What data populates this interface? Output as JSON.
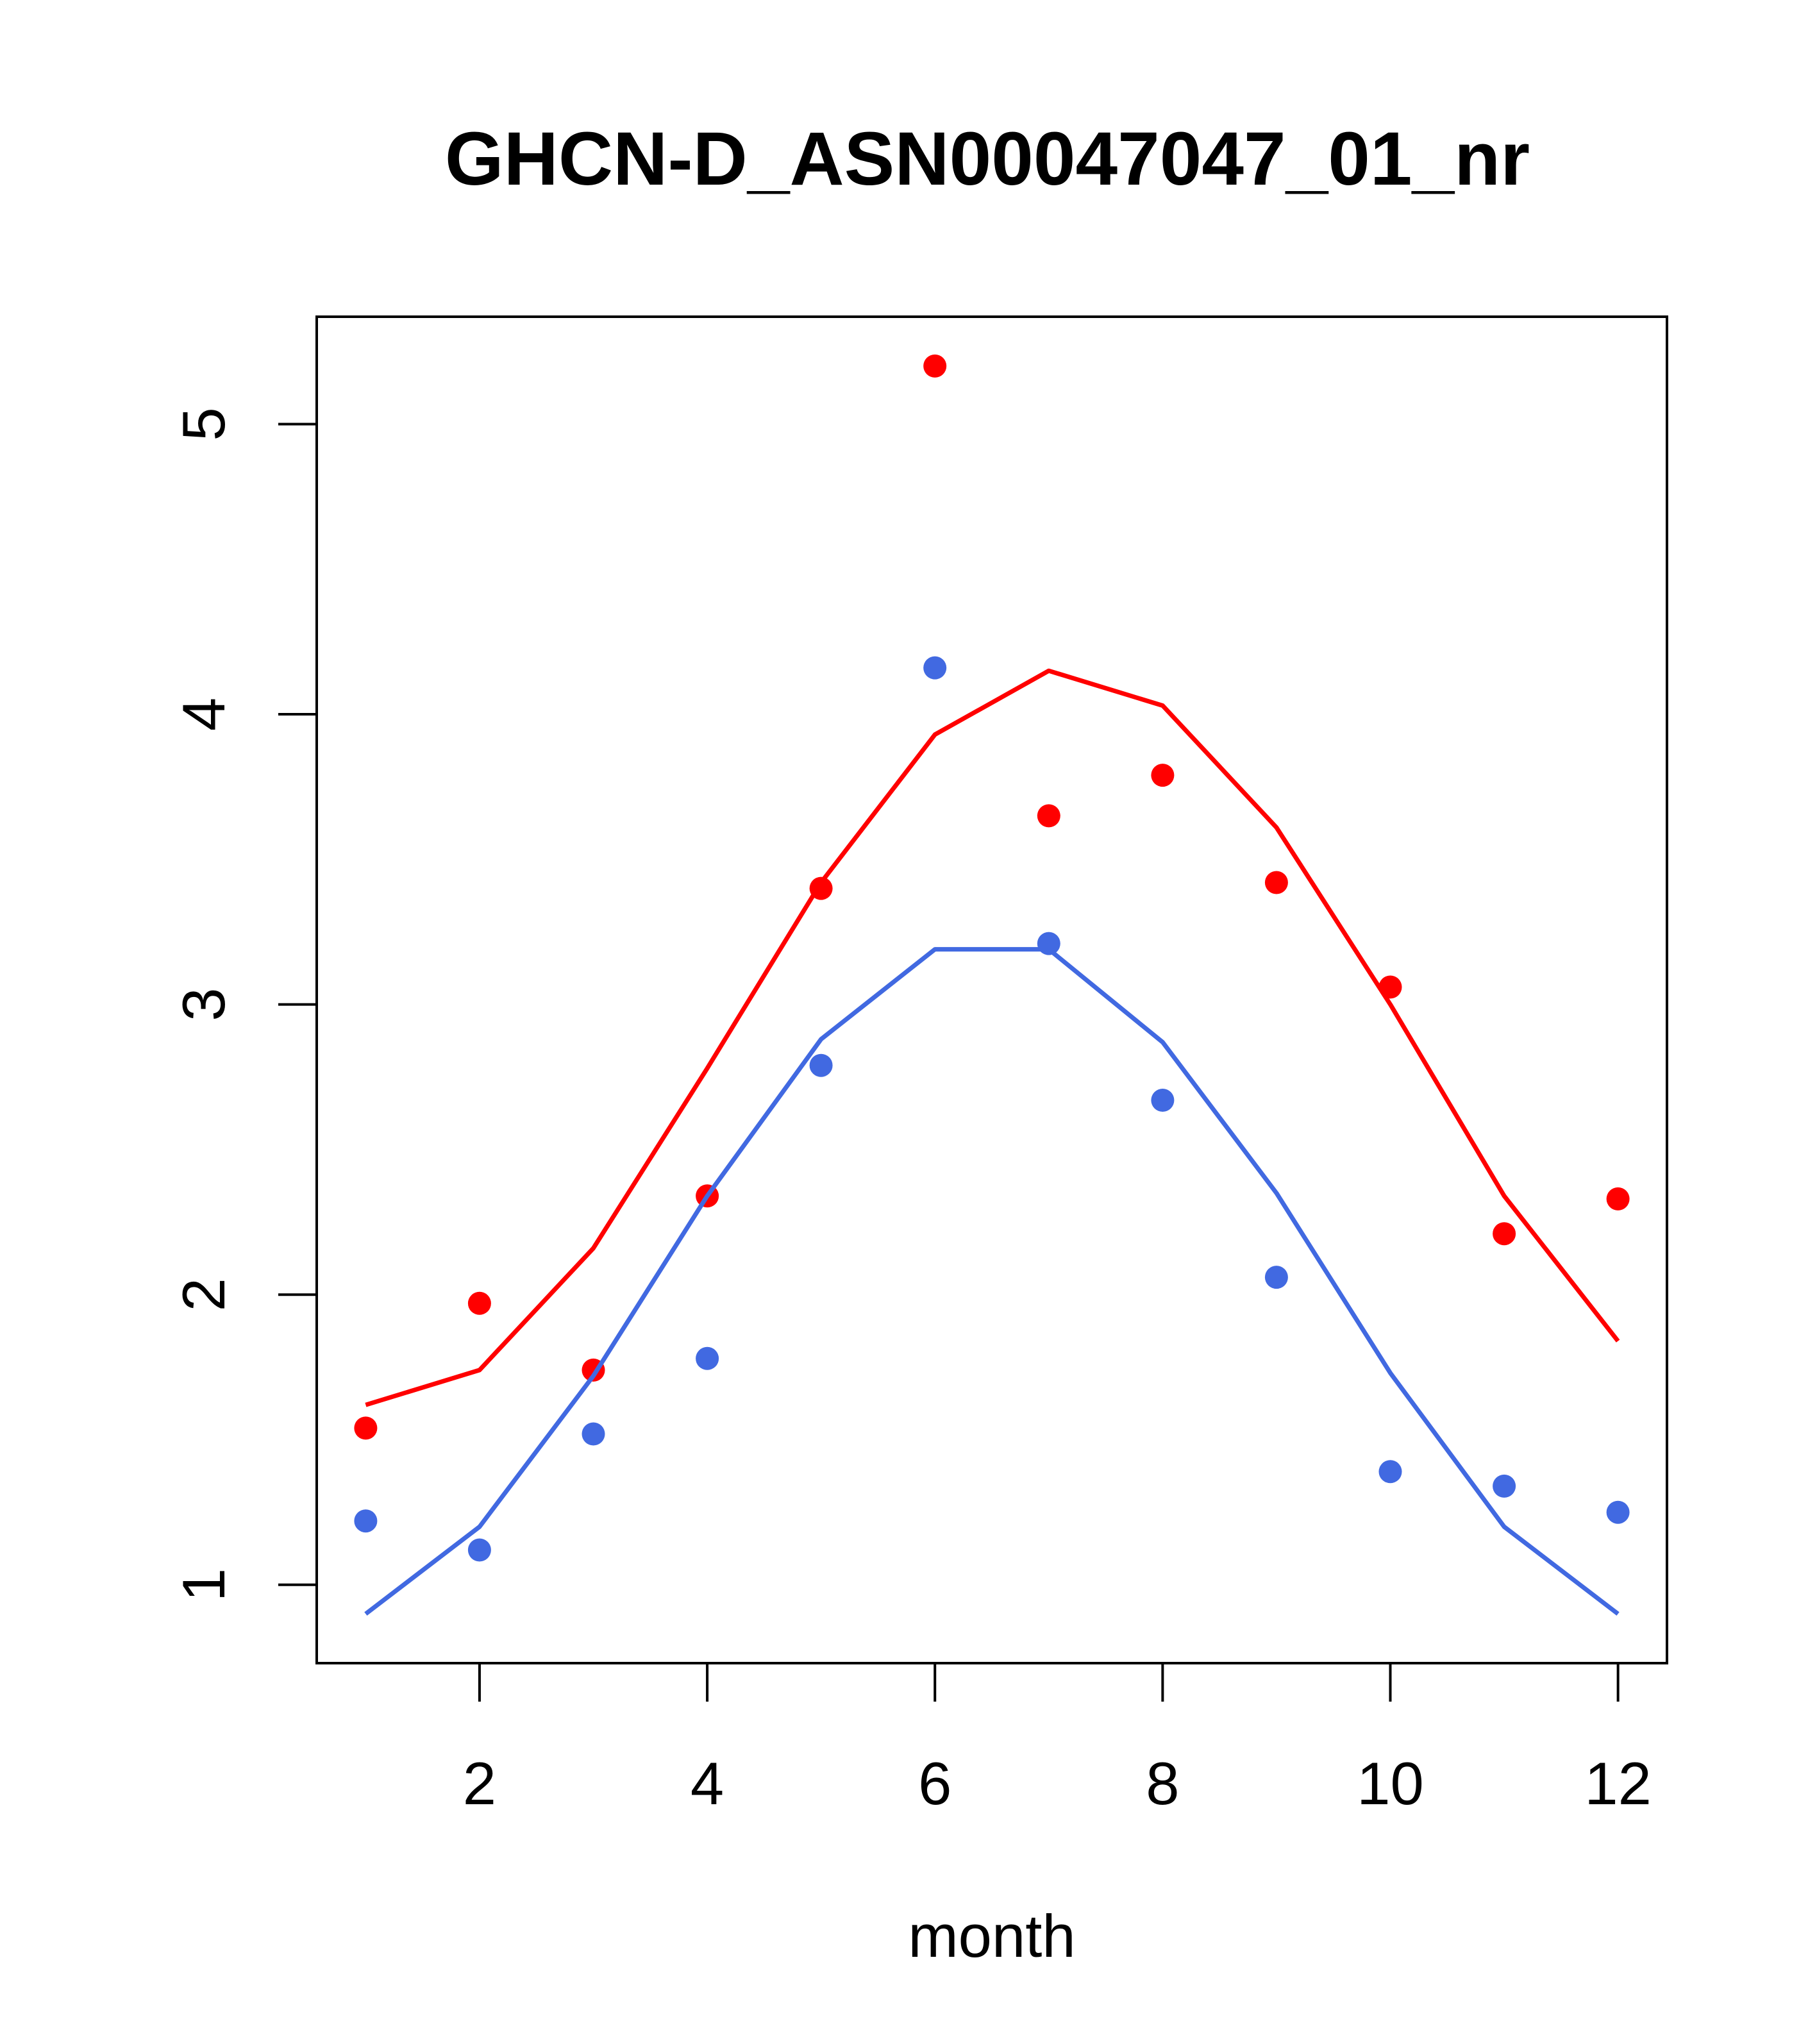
{
  "chart_data": {
    "type": "line",
    "title": "GHCN-D_ASN00047047_01_nr",
    "xlabel": "month",
    "ylabel": "",
    "xlim": [
      0.57,
      12.43
    ],
    "ylim": [
      0.73,
      5.37
    ],
    "xticks": [
      2,
      4,
      6,
      8,
      10,
      12
    ],
    "yticks": [
      1,
      2,
      3,
      4,
      5
    ],
    "grid": false,
    "legend": "none",
    "x": [
      1,
      2,
      3,
      4,
      5,
      6,
      7,
      8,
      9,
      10,
      11,
      12
    ],
    "series": [
      {
        "color": "#ff0000",
        "points": [
          1.54,
          1.97,
          1.74,
          2.34,
          3.4,
          5.2,
          3.65,
          3.79,
          3.42,
          3.06,
          2.21,
          2.33
        ],
        "line": [
          1.62,
          1.74,
          2.16,
          2.78,
          3.42,
          3.93,
          4.15,
          4.03,
          3.61,
          3.0,
          2.34,
          1.84
        ]
      },
      {
        "color": "#4169e1",
        "points": [
          1.22,
          1.12,
          1.52,
          1.78,
          2.79,
          4.16,
          3.21,
          2.67,
          2.06,
          1.39,
          1.34,
          1.25
        ],
        "line": [
          0.9,
          1.2,
          1.72,
          2.34,
          2.88,
          3.19,
          3.19,
          2.87,
          2.35,
          1.73,
          1.2,
          0.9
        ]
      }
    ]
  }
}
